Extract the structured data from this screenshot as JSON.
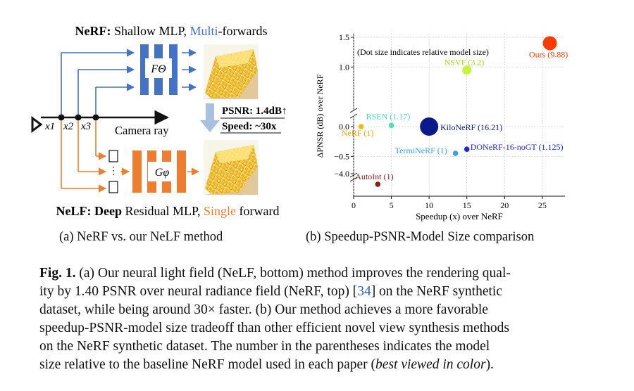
{
  "panel_a": {
    "nerf_title_bold": "NeRF:",
    "nerf_title_rest": "Shallow MLP,",
    "nerf_title_highlight": "Multi",
    "nerf_title_tail": "-forwards",
    "nelf_title_bold": "NeLF: Deep",
    "nelf_title_rest": "Residual MLP,",
    "nelf_title_highlight": "Single",
    "nelf_title_tail": "forward",
    "f_theta_label": "FΘ",
    "g_phi_label": "Gφ",
    "x1": "x1",
    "x2": "x2",
    "x3": "x3",
    "camera_ray": "Camera ray",
    "psnr_text": "PSNR: 1.4dB↑",
    "speed_text": "Speed: ~30x",
    "colors": {
      "nerf_blue": "#4472c4",
      "nelf_orange": "#ed7d31",
      "arrow_gray": "#a9c0e0"
    }
  },
  "subcaptions": {
    "a": "(a) NeRF vs. our NeLF method",
    "b": "(b) Speedup-PSNR-Model Size comparison"
  },
  "chart_data": {
    "type": "scatter",
    "xlabel": "Speedup (x) over NeRF",
    "ylabel": "ΔPNSR (dB) over NeRF",
    "annotation": "(Dot size indicates relative model size)",
    "xlim": [
      0,
      28
    ],
    "x_ticks": [
      "0",
      "5",
      "10",
      "15",
      "20",
      "25"
    ],
    "y_ticks_upper": [
      "1.5",
      "1.0",
      "0.0",
      "−0.5"
    ],
    "y_tick_lower": "−4.0",
    "broken_y_axis": true,
    "grid": true,
    "points": [
      {
        "label": "Ours (9.88)",
        "x": 26,
        "y": 1.4,
        "size": 9.88,
        "color": "#ff3b00"
      },
      {
        "label": "NSVF (3.2)",
        "x": 15,
        "y": 0.95,
        "size": 3.2,
        "color": "#c6f33d"
      },
      {
        "label": "RSEN (1.17)",
        "x": 5,
        "y": 0.02,
        "size": 1.17,
        "color": "#4de1b0"
      },
      {
        "label": "NeRF (1)",
        "x": 1,
        "y": 0.0,
        "size": 1,
        "color": "#f2b818"
      },
      {
        "label": "KiloNeRF (16.21)",
        "x": 10,
        "y": 0.0,
        "size": 16.21,
        "color": "#0b1a8a"
      },
      {
        "label": "TermiNeRF (1)",
        "x": 13.5,
        "y": -0.45,
        "size": 1,
        "color": "#3aa0ee"
      },
      {
        "label": "DONeRF-16-noGT (1.125)",
        "x": 15,
        "y": -0.38,
        "size": 1.125,
        "color": "#1a28d8"
      },
      {
        "label": "AutoInt (1)",
        "x": 3.2,
        "y": -4.3,
        "size": 1,
        "color": "#8b1a1a"
      }
    ]
  },
  "caption": {
    "fig_label": "Fig. 1.",
    "line1": "(a) Our neural light field (NeLF, bottom) method improves the rendering qual-",
    "line2_pre": "ity by 1.40 PSNR over neural radiance field (NeRF, top) [",
    "line2_ref": "34",
    "line2_post": "] on the NeRF synthetic",
    "line3": "dataset, while being around 30× faster. (b) Our method achieves a more favorable",
    "line4": "speedup-PSNR-model size tradeoff than other efficient novel view synthesis methods",
    "line5": "on the NeRF synthetic dataset. The number in the parentheses indicates the model",
    "line6_pre": "size relative to the baseline NeRF model used in each paper (",
    "line6_ital": "best viewed in color",
    "line6_post": ")."
  }
}
